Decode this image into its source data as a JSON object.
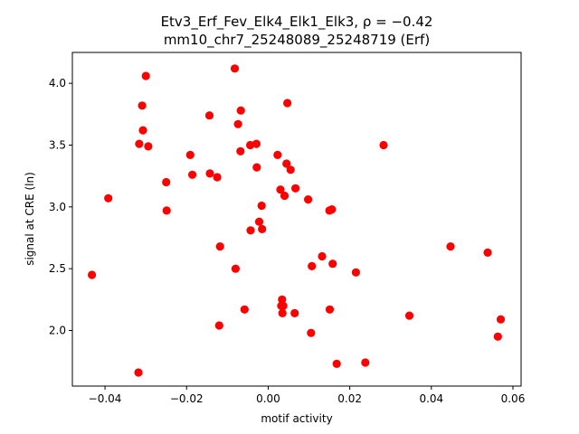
{
  "chart_data": {
    "type": "scatter",
    "title": "Etv3_Erf_Fev_Elk4_Elk1_Elk3, ρ = −0.42",
    "subtitle": "mm10_chr7_25248089_25248719 (Erf)",
    "xlabel": "motif activity",
    "ylabel": "signal at CRE (ln)",
    "xlim": [
      -0.048,
      0.062
    ],
    "ylim": [
      1.55,
      4.25
    ],
    "xticks": [
      -0.04,
      -0.02,
      0.0,
      0.02,
      0.04,
      0.06
    ],
    "xtick_labels": [
      "−0.04",
      "−0.02",
      "0.00",
      "0.02",
      "0.04",
      "0.06"
    ],
    "yticks": [
      2.0,
      2.5,
      3.0,
      3.5,
      4.0
    ],
    "ytick_labels": [
      "2.0",
      "2.5",
      "3.0",
      "3.5",
      "4.0"
    ],
    "grid": false,
    "marker_color": "#ff0000",
    "points": [
      {
        "x": -0.0432,
        "y": 2.45
      },
      {
        "x": -0.0392,
        "y": 3.07
      },
      {
        "x": -0.0318,
        "y": 1.66
      },
      {
        "x": -0.0316,
        "y": 3.51
      },
      {
        "x": -0.0309,
        "y": 3.82
      },
      {
        "x": -0.0307,
        "y": 3.62
      },
      {
        "x": -0.03,
        "y": 4.06
      },
      {
        "x": -0.0294,
        "y": 3.49
      },
      {
        "x": -0.025,
        "y": 3.2
      },
      {
        "x": -0.0249,
        "y": 2.97
      },
      {
        "x": -0.0191,
        "y": 3.42
      },
      {
        "x": -0.0186,
        "y": 3.26
      },
      {
        "x": -0.0144,
        "y": 3.74
      },
      {
        "x": -0.0143,
        "y": 3.27
      },
      {
        "x": -0.0125,
        "y": 3.24
      },
      {
        "x": -0.012,
        "y": 2.04
      },
      {
        "x": -0.0118,
        "y": 2.68
      },
      {
        "x": -0.0082,
        "y": 4.12
      },
      {
        "x": -0.008,
        "y": 2.5
      },
      {
        "x": -0.0074,
        "y": 3.67
      },
      {
        "x": -0.0068,
        "y": 3.45
      },
      {
        "x": -0.0067,
        "y": 3.78
      },
      {
        "x": -0.0058,
        "y": 2.17
      },
      {
        "x": -0.0044,
        "y": 3.5
      },
      {
        "x": -0.0043,
        "y": 2.81
      },
      {
        "x": -0.0029,
        "y": 3.51
      },
      {
        "x": -0.0028,
        "y": 3.32
      },
      {
        "x": -0.0022,
        "y": 2.88
      },
      {
        "x": -0.0016,
        "y": 3.01
      },
      {
        "x": -0.0015,
        "y": 2.82
      },
      {
        "x": 0.0023,
        "y": 3.42
      },
      {
        "x": 0.003,
        "y": 3.14
      },
      {
        "x": 0.0032,
        "y": 2.2
      },
      {
        "x": 0.0034,
        "y": 2.25
      },
      {
        "x": 0.0035,
        "y": 2.14
      },
      {
        "x": 0.0037,
        "y": 2.2
      },
      {
        "x": 0.004,
        "y": 3.09
      },
      {
        "x": 0.0045,
        "y": 3.35
      },
      {
        "x": 0.0047,
        "y": 3.84
      },
      {
        "x": 0.0055,
        "y": 3.3
      },
      {
        "x": 0.0065,
        "y": 2.14
      },
      {
        "x": 0.0067,
        "y": 3.15
      },
      {
        "x": 0.0098,
        "y": 3.06
      },
      {
        "x": 0.0105,
        "y": 1.98
      },
      {
        "x": 0.0107,
        "y": 2.52
      },
      {
        "x": 0.0132,
        "y": 2.6
      },
      {
        "x": 0.015,
        "y": 2.97
      },
      {
        "x": 0.0151,
        "y": 2.17
      },
      {
        "x": 0.0156,
        "y": 2.98
      },
      {
        "x": 0.0158,
        "y": 2.54
      },
      {
        "x": 0.0168,
        "y": 1.73
      },
      {
        "x": 0.0215,
        "y": 2.47
      },
      {
        "x": 0.0238,
        "y": 1.74
      },
      {
        "x": 0.0283,
        "y": 3.5
      },
      {
        "x": 0.0346,
        "y": 2.12
      },
      {
        "x": 0.0447,
        "y": 2.68
      },
      {
        "x": 0.0538,
        "y": 2.63
      },
      {
        "x": 0.0563,
        "y": 1.95
      },
      {
        "x": 0.057,
        "y": 2.09
      }
    ]
  }
}
